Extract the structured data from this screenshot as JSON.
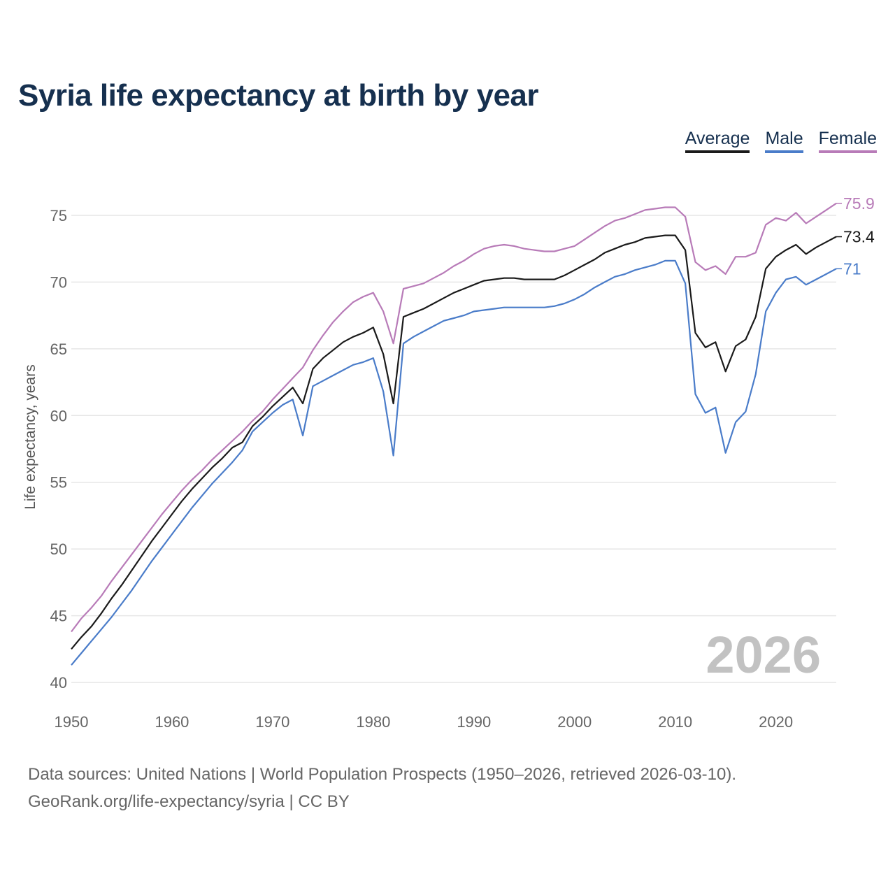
{
  "chart_data": {
    "type": "line",
    "title": "Syria life expectancy at birth by year",
    "xlabel": "",
    "ylabel": "Life expectancy, years",
    "xlim": [
      1950,
      2026
    ],
    "ylim": [
      40,
      77
    ],
    "yticks": [
      40,
      45,
      50,
      55,
      60,
      65,
      70,
      75
    ],
    "xticks": [
      1950,
      1960,
      1970,
      1980,
      1990,
      2000,
      2010,
      2020
    ],
    "grid": true,
    "legend_position": "top-right",
    "watermark": "2026",
    "x_start": 1950,
    "series": [
      {
        "name": "Average",
        "color": "#1a1a1a",
        "end_label": "73.4",
        "values": [
          42.5,
          43.4,
          44.2,
          45.2,
          46.3,
          47.3,
          48.4,
          49.5,
          50.6,
          51.6,
          52.6,
          53.6,
          54.5,
          55.3,
          56.1,
          56.8,
          57.6,
          58.0,
          59.2,
          59.9,
          60.7,
          61.4,
          62.1,
          60.9,
          63.5,
          64.3,
          64.9,
          65.5,
          65.9,
          66.2,
          66.6,
          64.6,
          60.9,
          67.4,
          67.7,
          68.0,
          68.4,
          68.8,
          69.2,
          69.5,
          69.8,
          70.1,
          70.2,
          70.3,
          70.3,
          70.2,
          70.2,
          70.2,
          70.2,
          70.5,
          70.9,
          71.3,
          71.7,
          72.2,
          72.5,
          72.8,
          73.0,
          73.3,
          73.4,
          73.5,
          73.5,
          72.4,
          66.2,
          65.1,
          65.5,
          63.3,
          65.2,
          65.7,
          67.4,
          71.0,
          71.9,
          72.4,
          72.8,
          72.1,
          72.6,
          73.0,
          73.4
        ]
      },
      {
        "name": "Male",
        "color": "#4a7cc9",
        "end_label": "71",
        "values": [
          41.3,
          42.2,
          43.1,
          44.0,
          44.9,
          45.9,
          46.9,
          48.0,
          49.1,
          50.1,
          51.1,
          52.1,
          53.1,
          54.0,
          54.9,
          55.7,
          56.5,
          57.4,
          58.8,
          59.5,
          60.2,
          60.8,
          61.2,
          58.5,
          62.2,
          62.6,
          63.0,
          63.4,
          63.8,
          64.0,
          64.3,
          61.8,
          57.0,
          65.4,
          65.9,
          66.3,
          66.7,
          67.1,
          67.3,
          67.5,
          67.8,
          67.9,
          68.0,
          68.1,
          68.1,
          68.1,
          68.1,
          68.1,
          68.2,
          68.4,
          68.7,
          69.1,
          69.6,
          70.0,
          70.4,
          70.6,
          70.9,
          71.1,
          71.3,
          71.6,
          71.6,
          69.9,
          61.6,
          60.2,
          60.6,
          57.2,
          59.5,
          60.3,
          63.1,
          67.8,
          69.2,
          70.2,
          70.4,
          69.8,
          70.2,
          70.6,
          71.0
        ]
      },
      {
        "name": "Female",
        "color": "#b87bb8",
        "end_label": "75.9",
        "values": [
          43.8,
          44.8,
          45.6,
          46.5,
          47.6,
          48.6,
          49.6,
          50.6,
          51.6,
          52.6,
          53.5,
          54.4,
          55.2,
          55.9,
          56.7,
          57.4,
          58.1,
          58.8,
          59.6,
          60.3,
          61.2,
          62.0,
          62.8,
          63.6,
          64.9,
          66.0,
          67.0,
          67.8,
          68.5,
          68.9,
          69.2,
          67.8,
          65.4,
          69.5,
          69.7,
          69.9,
          70.3,
          70.7,
          71.2,
          71.6,
          72.1,
          72.5,
          72.7,
          72.8,
          72.7,
          72.5,
          72.4,
          72.3,
          72.3,
          72.5,
          72.7,
          73.2,
          73.7,
          74.2,
          74.6,
          74.8,
          75.1,
          75.4,
          75.5,
          75.6,
          75.6,
          74.9,
          71.5,
          70.9,
          71.2,
          70.6,
          71.9,
          71.9,
          72.2,
          74.3,
          74.8,
          74.6,
          75.2,
          74.4,
          74.9,
          75.4,
          75.9
        ]
      }
    ]
  },
  "footer": {
    "sources": "Data sources: United Nations | World Population Prospects (1950–2026, retrieved 2026-03-10).",
    "credit": "GeoRank.org/life-expectancy/syria | CC BY"
  }
}
